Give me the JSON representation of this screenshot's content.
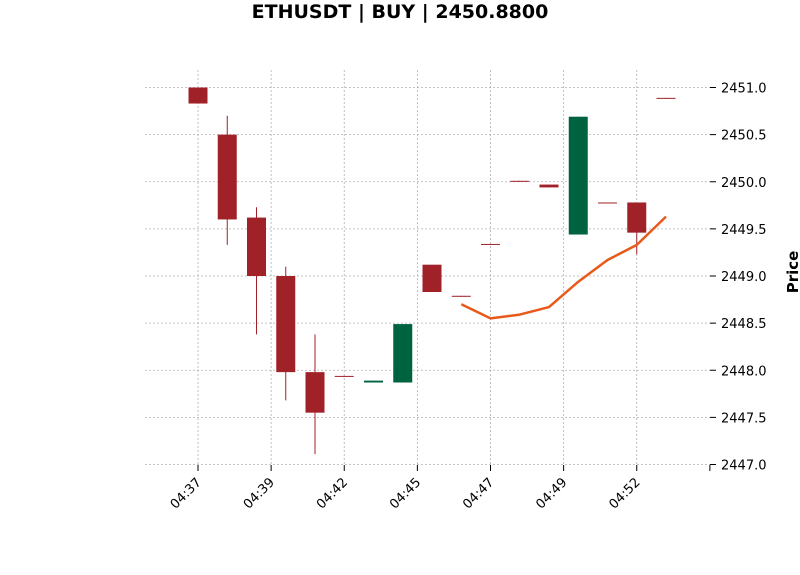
{
  "chart_data": {
    "type": "candlestick",
    "title": "ETHUSDT | BUY | 2450.8800",
    "xlabel": "",
    "ylabel": "Price",
    "ylim": [
      2447.0,
      2451.2
    ],
    "y_ticks": [
      "2447.0",
      "2447.5",
      "2448.0",
      "2448.5",
      "2449.0",
      "2449.5",
      "2450.0",
      "2450.5",
      "2451.0"
    ],
    "x_ticks": [
      {
        "index": 0,
        "label": "04:37"
      },
      {
        "index": 2.5,
        "label": "04:39"
      },
      {
        "index": 5,
        "label": "04:42"
      },
      {
        "index": 7.5,
        "label": "04:45"
      },
      {
        "index": 10,
        "label": "04:47"
      },
      {
        "index": 12.5,
        "label": "04:49"
      },
      {
        "index": 15,
        "label": "04:52"
      },
      {
        "index": 17.5,
        "label": ""
      }
    ],
    "grid": true,
    "y_axis_side": "right",
    "colors": {
      "up": "#006340",
      "down": "#a02128",
      "line": "#e8591a"
    },
    "candles": [
      {
        "open": 2451.0,
        "high": 2451.0,
        "low": 2450.83,
        "close": 2450.83
      },
      {
        "open": 2450.5,
        "high": 2450.7,
        "low": 2449.33,
        "close": 2449.6
      },
      {
        "open": 2449.62,
        "high": 2449.73,
        "low": 2448.38,
        "close": 2449.0
      },
      {
        "open": 2449.0,
        "high": 2449.1,
        "low": 2447.68,
        "close": 2447.98
      },
      {
        "open": 2447.98,
        "high": 2448.38,
        "low": 2447.11,
        "close": 2447.55
      },
      {
        "open": 2447.94,
        "high": 2447.94,
        "low": 2447.93,
        "close": 2447.93
      },
      {
        "open": 2447.87,
        "high": 2447.89,
        "low": 2447.87,
        "close": 2447.89
      },
      {
        "open": 2447.87,
        "high": 2448.49,
        "low": 2447.87,
        "close": 2448.49
      },
      {
        "open": 2449.12,
        "high": 2449.12,
        "low": 2448.83,
        "close": 2448.83
      },
      {
        "open": 2448.79,
        "high": 2448.79,
        "low": 2448.78,
        "close": 2448.78
      },
      {
        "open": 2449.34,
        "high": 2449.34,
        "low": 2449.33,
        "close": 2449.33
      },
      {
        "open": 2450.01,
        "high": 2450.01,
        "low": 2450.0,
        "close": 2450.0
      },
      {
        "open": 2449.97,
        "high": 2449.97,
        "low": 2449.94,
        "close": 2449.94
      },
      {
        "open": 2449.44,
        "high": 2450.69,
        "low": 2449.44,
        "close": 2450.69
      },
      {
        "open": 2449.78,
        "high": 2449.78,
        "low": 2449.77,
        "close": 2449.77
      },
      {
        "open": 2449.78,
        "high": 2449.78,
        "low": 2449.23,
        "close": 2449.46
      },
      {
        "open": 2450.89,
        "high": 2450.89,
        "low": 2450.88,
        "close": 2450.88
      }
    ],
    "moving_average": [
      {
        "index": 9,
        "value": 2448.7
      },
      {
        "index": 10,
        "value": 2448.55
      },
      {
        "index": 11,
        "value": 2448.59
      },
      {
        "index": 12,
        "value": 2448.67
      },
      {
        "index": 13,
        "value": 2448.94
      },
      {
        "index": 14,
        "value": 2449.17
      },
      {
        "index": 15,
        "value": 2449.33
      },
      {
        "index": 16,
        "value": 2449.63
      }
    ]
  }
}
